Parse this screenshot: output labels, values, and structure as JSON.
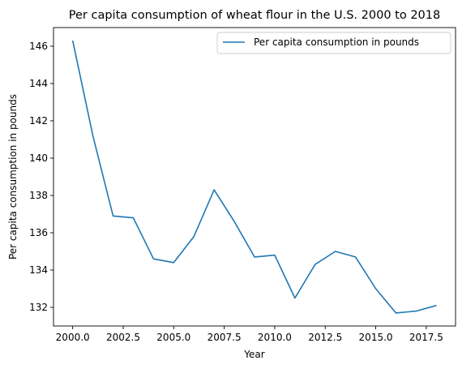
{
  "chart_data": {
    "type": "line",
    "title": "Per capita consumption of wheat flour in the U.S. 2000 to 2018",
    "xlabel": "Year",
    "ylabel": "Per capita consumption in pounds",
    "x": [
      2000,
      2001,
      2002,
      2003,
      2004,
      2005,
      2006,
      2007,
      2008,
      2009,
      2010,
      2011,
      2012,
      2013,
      2014,
      2015,
      2016,
      2017,
      2018
    ],
    "series": [
      {
        "name": "Per capita consumption in pounds",
        "color": "#1f77b4",
        "values": [
          146.3,
          141.2,
          136.9,
          136.8,
          134.6,
          134.4,
          135.8,
          138.3,
          136.6,
          134.7,
          134.8,
          132.5,
          134.3,
          135.0,
          134.7,
          133.0,
          131.7,
          131.8,
          132.1
        ]
      }
    ],
    "xlim": [
      1999.05,
      2018.95
    ],
    "ylim": [
      131.0,
      147.0
    ],
    "xticks": [
      2000.0,
      2002.5,
      2005.0,
      2007.5,
      2010.0,
      2012.5,
      2015.0,
      2017.5
    ],
    "xtick_labels": [
      "2000.0",
      "2002.5",
      "2005.0",
      "2007.5",
      "2010.0",
      "2012.5",
      "2015.0",
      "2017.5"
    ],
    "yticks": [
      132,
      134,
      136,
      138,
      140,
      142,
      144,
      146
    ],
    "ytick_labels": [
      "132",
      "134",
      "136",
      "138",
      "140",
      "142",
      "144",
      "146"
    ],
    "grid": false,
    "legend": "upper-right"
  }
}
